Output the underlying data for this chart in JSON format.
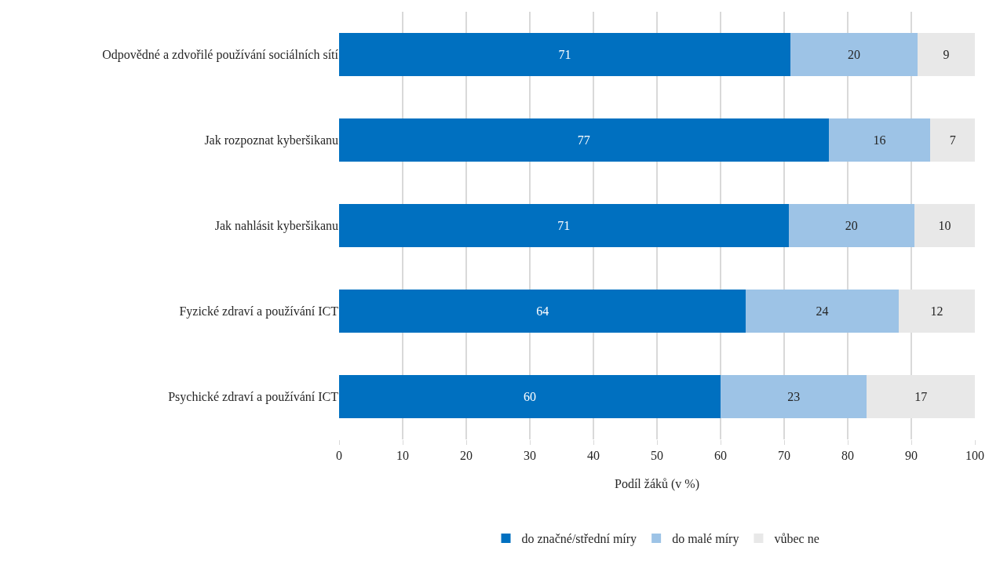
{
  "chart_data": {
    "type": "bar",
    "orientation": "horizontal",
    "stacked": true,
    "categories": [
      "Odpovědné a zdvořilé používání sociálních sítí",
      "Jak rozpoznat kyberšikanu",
      "Jak nahlásit kyberšikanu",
      "Fyzické zdraví a používání ICT",
      "Psychické zdraví a používání ICT"
    ],
    "series": [
      {
        "name": "do značné/střední míry",
        "color": "#0070c0",
        "values": [
          71,
          77,
          70.7,
          64,
          60
        ],
        "value_labels": [
          "71",
          "77",
          "71",
          "64",
          "60"
        ]
      },
      {
        "name": "do malé míry",
        "color": "#9dc3e6",
        "values": [
          20,
          16,
          19.8,
          24,
          23
        ],
        "value_labels": [
          "20",
          "16",
          "20",
          "24",
          "23"
        ]
      },
      {
        "name": "vůbec ne",
        "color": "#e8e8e8",
        "values": [
          9,
          7,
          9.5,
          12,
          17
        ],
        "value_labels": [
          "9",
          "7",
          "10",
          "12",
          "17"
        ]
      }
    ],
    "xlabel": "Podíl žáků (v %)",
    "xlim": [
      0,
      100
    ],
    "xticks": [
      0,
      10,
      20,
      30,
      40,
      50,
      60,
      70,
      80,
      90,
      100
    ],
    "grid": "x",
    "legend": "bottom"
  }
}
